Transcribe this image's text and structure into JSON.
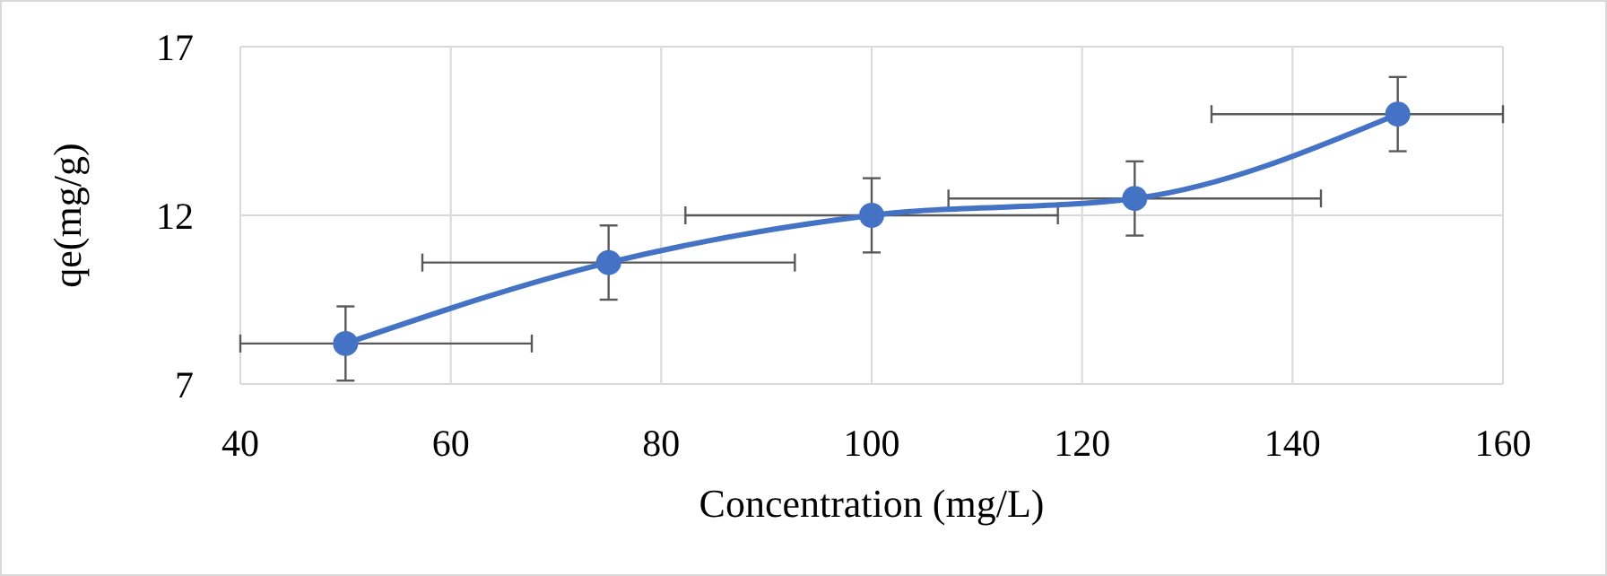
{
  "chart_data": {
    "type": "line",
    "xlabel": "Concentration  (mg/L)",
    "ylabel": "qe(mg/g)",
    "x": [
      50,
      75,
      100,
      125,
      150
    ],
    "series": [
      {
        "color": "#4472c4",
        "values": [
          8.2,
          10.6,
          12.0,
          12.5,
          15.0
        ],
        "errors": [
          1.1,
          1.1,
          1.1,
          1.1,
          1.1
        ],
        "xerrors": [
          [
            40,
            67.7
          ],
          17.7,
          17.7,
          17.7,
          [
            132.3,
            160
          ]
        ]
      }
    ],
    "xlim": [
      40,
      160
    ],
    "xticks": [
      40,
      60,
      80,
      100,
      120,
      140,
      160
    ],
    "ylim": [
      7,
      17
    ],
    "yticks": [
      7,
      12,
      17
    ],
    "grid": true,
    "marker": "circle",
    "line_style": "solid"
  }
}
